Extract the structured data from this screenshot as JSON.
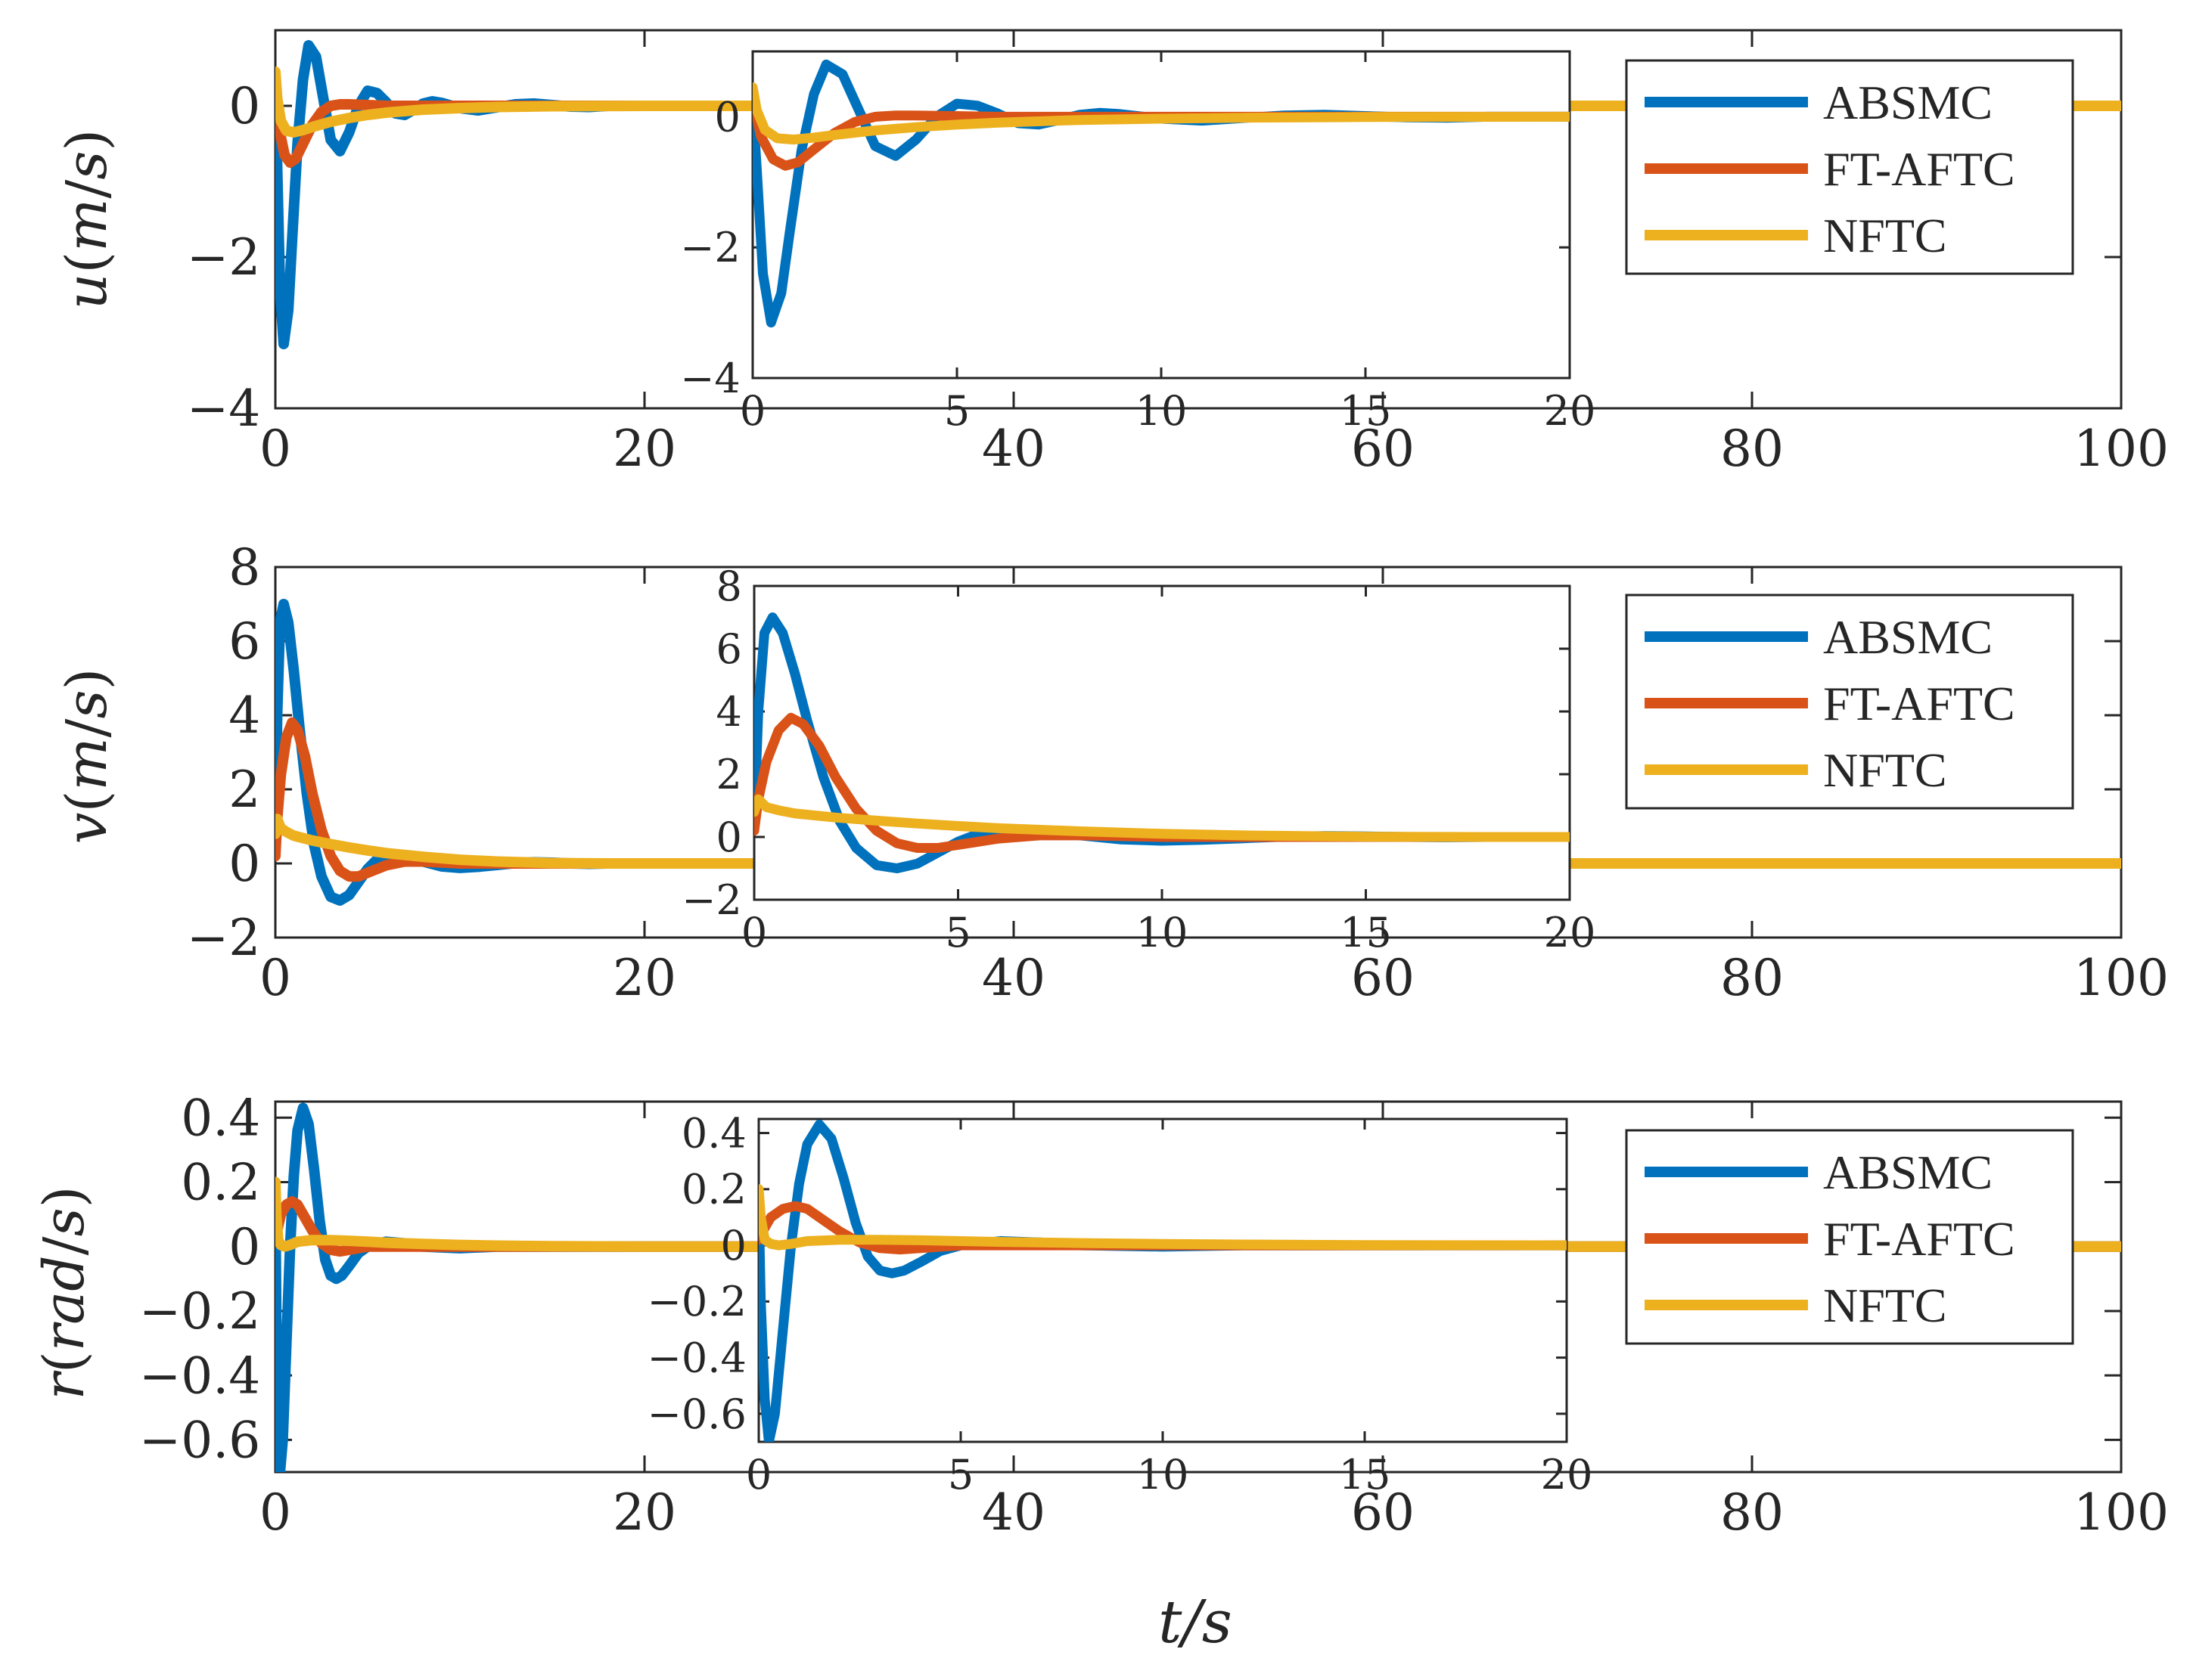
{
  "chart_data": [
    {
      "type": "line",
      "name": "u-panel",
      "ylabel": "u(m/s)",
      "xlim": [
        0,
        100
      ],
      "ylim": [
        -4,
        1
      ],
      "xticks": [
        "0",
        "20",
        "40",
        "60",
        "80",
        "100"
      ],
      "yticks": [
        "0",
        "−2",
        "−4"
      ],
      "ytick_values": [
        0,
        -2,
        -4
      ],
      "xtick_values": [
        0,
        20,
        40,
        60,
        80,
        100
      ],
      "legend": [
        "ABSMC",
        "FT-AFTC",
        "NFTC"
      ],
      "series": [
        {
          "name": "ABSMC",
          "color": "#0072BD",
          "x": [
            0,
            0.1,
            0.25,
            0.45,
            0.7,
            0.9,
            1.2,
            1.5,
            1.8,
            2.2,
            2.6,
            3.0,
            3.5,
            4.0,
            4.5,
            5.0,
            5.5,
            6.0,
            6.5,
            7.0,
            7.5,
            8.0,
            8.5,
            9.0,
            10,
            11,
            12,
            13,
            14,
            15,
            16,
            17,
            18,
            20,
            25,
            30,
            40,
            60,
            80,
            100
          ],
          "y": [
            0.2,
            -0.8,
            -2.4,
            -3.15,
            -2.7,
            -1.8,
            -0.5,
            0.35,
            0.8,
            0.65,
            0.1,
            -0.45,
            -0.6,
            -0.35,
            0.0,
            0.2,
            0.17,
            0.05,
            -0.1,
            -0.12,
            -0.05,
            0.03,
            0.06,
            0.04,
            -0.03,
            -0.06,
            -0.02,
            0.02,
            0.03,
            0.01,
            -0.01,
            -0.015,
            0,
            0,
            0,
            0,
            0,
            0,
            0,
            0
          ]
        },
        {
          "name": "FT-AFTC",
          "color": "#D95319",
          "x": [
            0,
            0.2,
            0.5,
            0.8,
            1.1,
            1.5,
            2.0,
            2.5,
            3.0,
            3.5,
            4.0,
            5.0,
            6.0,
            8.0,
            10,
            15,
            20,
            30,
            50,
            100
          ],
          "y": [
            0.3,
            -0.3,
            -0.65,
            -0.75,
            -0.7,
            -0.5,
            -0.25,
            -0.08,
            0.0,
            0.02,
            0.02,
            0.01,
            0,
            0,
            0,
            0,
            0,
            0,
            0,
            0
          ]
        },
        {
          "name": "NFTC",
          "color": "#EDB120",
          "x": [
            0,
            0.1,
            0.3,
            0.6,
            1.0,
            1.5,
            2.0,
            3.0,
            4.0,
            5.0,
            6.0,
            8.0,
            10,
            12,
            15,
            20,
            30,
            50,
            100
          ],
          "y": [
            0.45,
            0.1,
            -0.2,
            -0.33,
            -0.35,
            -0.32,
            -0.28,
            -0.21,
            -0.16,
            -0.12,
            -0.09,
            -0.05,
            -0.03,
            -0.015,
            -0.005,
            0,
            0,
            0,
            0
          ]
        }
      ],
      "inset": {
        "xlim": [
          0,
          20
        ],
        "ylim": [
          -4,
          1
        ],
        "xticks": [
          "0",
          "5",
          "10",
          "15",
          "20"
        ],
        "xtick_values": [
          0,
          5,
          10,
          15,
          20
        ],
        "yticks": [
          "0",
          "−2",
          "−4"
        ],
        "ytick_values": [
          0,
          -2,
          -4
        ]
      }
    },
    {
      "type": "line",
      "name": "v-panel",
      "ylabel": "v(m/s)",
      "xlim": [
        0,
        100
      ],
      "ylim": [
        -2,
        8
      ],
      "xticks": [
        "0",
        "20",
        "40",
        "60",
        "80",
        "100"
      ],
      "yticks": [
        "8",
        "6",
        "4",
        "2",
        "0",
        "−2"
      ],
      "ytick_values": [
        8,
        6,
        4,
        2,
        0,
        -2
      ],
      "xtick_values": [
        0,
        20,
        40,
        60,
        80,
        100
      ],
      "legend": [
        "ABSMC",
        "FT-AFTC",
        "NFTC"
      ],
      "series": [
        {
          "name": "ABSMC",
          "color": "#0072BD",
          "x": [
            0,
            0.1,
            0.25,
            0.45,
            0.7,
            1.0,
            1.3,
            1.7,
            2.1,
            2.5,
            3.0,
            3.5,
            4.0,
            4.5,
            5.0,
            5.5,
            6.0,
            7.0,
            8.0,
            9.0,
            10,
            11,
            12,
            13,
            14,
            15,
            16,
            17,
            18,
            20,
            30,
            50,
            100
          ],
          "y": [
            0.5,
            4.0,
            6.5,
            7.0,
            6.5,
            5.2,
            3.7,
            1.9,
            0.5,
            -0.35,
            -0.9,
            -1.0,
            -0.85,
            -0.5,
            -0.15,
            0.1,
            0.2,
            0.2,
            0.05,
            -0.08,
            -0.12,
            -0.09,
            -0.04,
            0.01,
            0.03,
            0.02,
            0,
            -0.01,
            0,
            0,
            0,
            0,
            0
          ]
        },
        {
          "name": "FT-AFTC",
          "color": "#D95319",
          "x": [
            0,
            0.1,
            0.3,
            0.6,
            0.9,
            1.2,
            1.6,
            2.0,
            2.5,
            3.0,
            3.5,
            4.0,
            4.5,
            5.0,
            6.0,
            7.0,
            8.0,
            10,
            12,
            15,
            20,
            30,
            50,
            100
          ],
          "y": [
            0.2,
            1.2,
            2.4,
            3.4,
            3.8,
            3.6,
            2.9,
            1.9,
            0.9,
            0.2,
            -0.2,
            -0.35,
            -0.35,
            -0.25,
            -0.05,
            0.05,
            0.05,
            0.0,
            0,
            0,
            0,
            0,
            0,
            0
          ]
        },
        {
          "name": "NFTC",
          "color": "#EDB120",
          "x": [
            0,
            0.1,
            0.3,
            0.6,
            1.0,
            2.0,
            3.0,
            4.0,
            5.0,
            6.0,
            8.0,
            10,
            12,
            15,
            18,
            20,
            30,
            50,
            100
          ],
          "y": [
            0.8,
            1.2,
            0.95,
            0.85,
            0.75,
            0.62,
            0.52,
            0.43,
            0.35,
            0.28,
            0.18,
            0.1,
            0.05,
            0.01,
            0,
            0,
            0,
            0,
            0
          ]
        }
      ],
      "inset": {
        "xlim": [
          0,
          20
        ],
        "ylim": [
          -2,
          8
        ],
        "xticks": [
          "0",
          "5",
          "10",
          "15",
          "20"
        ],
        "xtick_values": [
          0,
          5,
          10,
          15,
          20
        ],
        "yticks": [
          "8",
          "6",
          "4",
          "2",
          "0",
          "−2"
        ],
        "ytick_values": [
          8,
          6,
          4,
          2,
          0,
          -2
        ]
      }
    },
    {
      "type": "line",
      "name": "r-panel",
      "ylabel": "r(rad/s)",
      "xlim": [
        0,
        100
      ],
      "ylim": [
        -0.7,
        0.45
      ],
      "xticks": [
        "0",
        "20",
        "40",
        "60",
        "80",
        "100"
      ],
      "yticks": [
        "0.4",
        "0.2",
        "0",
        "−0.2",
        "−0.4",
        "−0.6"
      ],
      "ytick_values": [
        0.4,
        0.2,
        0,
        -0.2,
        -0.4,
        -0.6
      ],
      "xtick_values": [
        0,
        20,
        40,
        60,
        80,
        100
      ],
      "legend": [
        "ABSMC",
        "FT-AFTC",
        "NFTC"
      ],
      "series": [
        {
          "name": "ABSMC",
          "color": "#0072BD",
          "x": [
            0,
            0.05,
            0.15,
            0.25,
            0.4,
            0.6,
            0.8,
            1.0,
            1.2,
            1.5,
            1.8,
            2.1,
            2.4,
            2.7,
            3.0,
            3.3,
            3.6,
            4.0,
            4.5,
            5.0,
            6.0,
            7.0,
            8.0,
            10,
            12,
            15,
            20,
            30,
            50,
            100
          ],
          "y": [
            0.15,
            -0.2,
            -0.55,
            -0.7,
            -0.6,
            -0.3,
            0.0,
            0.22,
            0.36,
            0.43,
            0.38,
            0.24,
            0.08,
            -0.04,
            -0.09,
            -0.1,
            -0.09,
            -0.06,
            -0.02,
            0.0,
            0.015,
            0.01,
            0.0,
            -0.005,
            0,
            0,
            0,
            0,
            0,
            0
          ]
        },
        {
          "name": "FT-AFTC",
          "color": "#D95319",
          "x": [
            0,
            0.1,
            0.3,
            0.6,
            0.9,
            1.2,
            1.5,
            2.0,
            2.5,
            3.0,
            3.5,
            4.0,
            5.0,
            6.0,
            8.0,
            10,
            15,
            20,
            30,
            50,
            100
          ],
          "y": [
            0.02,
            0.05,
            0.1,
            0.13,
            0.14,
            0.13,
            0.1,
            0.05,
            0.01,
            -0.01,
            -0.015,
            -0.01,
            0,
            0,
            0,
            0,
            0,
            0,
            0,
            0,
            0
          ]
        },
        {
          "name": "NFTC",
          "color": "#EDB120",
          "x": [
            0,
            0.05,
            0.15,
            0.3,
            0.5,
            0.8,
            1.2,
            2.0,
            3.0,
            4.0,
            5.0,
            6.0,
            8.0,
            10,
            12,
            15,
            20,
            30,
            50,
            100
          ],
          "y": [
            0.2,
            0.1,
            0.02,
            0.005,
            0.0,
            0.005,
            0.015,
            0.02,
            0.02,
            0.018,
            0.015,
            0.012,
            0.008,
            0.005,
            0.003,
            0.001,
            0,
            0,
            0,
            0
          ]
        }
      ],
      "inset": {
        "xlim": [
          0,
          20
        ],
        "ylim": [
          -0.7,
          0.45
        ],
        "xticks": [
          "0",
          "5",
          "10",
          "15",
          "20"
        ],
        "xtick_values": [
          0,
          5,
          10,
          15,
          20
        ],
        "yticks": [
          "0.4",
          "0.2",
          "0",
          "−0.2",
          "−0.4",
          "−0.6"
        ],
        "ytick_values": [
          0.4,
          0.2,
          0,
          -0.2,
          -0.4,
          -0.6
        ]
      }
    }
  ],
  "xlabel": "t/s",
  "colors": {
    "frame": "#262626",
    "absmc": "#0072BD",
    "ftaftc": "#D95319",
    "nftc": "#EDB120"
  }
}
